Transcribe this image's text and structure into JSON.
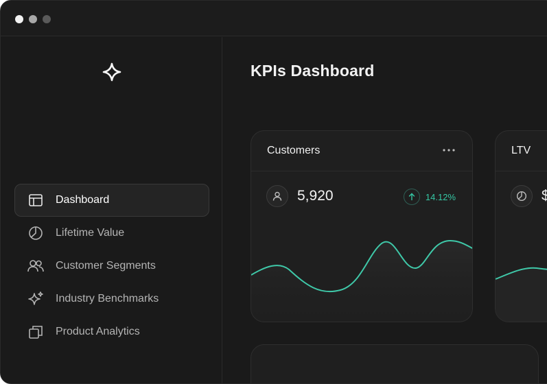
{
  "window": {
    "controls": [
      "close",
      "minimize",
      "zoom"
    ]
  },
  "sidebar": {
    "logo_icon": "sparkle-icon",
    "items": [
      {
        "label": "Dashboard",
        "icon": "layout-icon",
        "active": true
      },
      {
        "label": "Lifetime Value",
        "icon": "pie-chart-icon",
        "active": false
      },
      {
        "label": "Customer Segments",
        "icon": "users-icon",
        "active": false
      },
      {
        "label": "Industry Benchmarks",
        "icon": "sparkles-icon",
        "active": false
      },
      {
        "label": "Product Analytics",
        "icon": "copy-icon",
        "active": false
      }
    ]
  },
  "main": {
    "title": "KPIs Dashboard",
    "cards": [
      {
        "title": "Customers",
        "value": "5,920",
        "trend": "14.12%",
        "icon": "user-icon"
      },
      {
        "title": "LTV",
        "value": "$",
        "icon": "pie-chart-icon"
      }
    ]
  },
  "colors": {
    "background": "#1a1a1a",
    "card": "#1f1f1f",
    "accent": "#35c7a4",
    "text": "#f2f2f2",
    "muted": "#b4b4b4"
  }
}
